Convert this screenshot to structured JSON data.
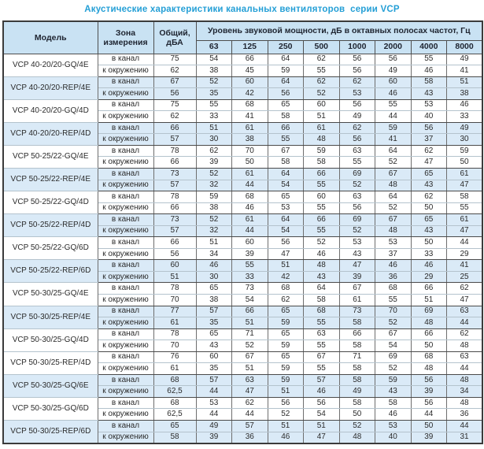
{
  "title": "Акустические характеристики канальных вентиляторов  серии VCP",
  "table": {
    "headers": {
      "model": "Модель",
      "zone": "Зона измерения",
      "total": "Общий, дБА",
      "spl": "Уровень звуковой мощности, дБ в октавных полосах частот, Гц"
    },
    "frequencies": [
      "63",
      "125",
      "250",
      "500",
      "1000",
      "2000",
      "4000",
      "8000"
    ],
    "groups": [
      {
        "model": "VCP 40-20/20-GQ/4E",
        "shade": false,
        "rows": [
          {
            "zone": "в канал",
            "total": "75",
            "levels": [
              54,
              66,
              64,
              62,
              56,
              56,
              55,
              49
            ]
          },
          {
            "zone": "к окружению",
            "total": "62",
            "levels": [
              38,
              45,
              59,
              55,
              56,
              49,
              46,
              41
            ]
          }
        ]
      },
      {
        "model": "VCP 40-20/20-REP/4E",
        "shade": true,
        "rows": [
          {
            "zone": "в канал",
            "total": "67",
            "levels": [
              52,
              60,
              64,
              62,
              62,
              60,
              58,
              51
            ]
          },
          {
            "zone": "к окружению",
            "total": "56",
            "levels": [
              35,
              42,
              56,
              52,
              53,
              46,
              43,
              38
            ]
          }
        ]
      },
      {
        "model": "VCP 40-20/20-GQ/4D",
        "shade": false,
        "rows": [
          {
            "zone": "в канал",
            "total": "75",
            "levels": [
              55,
              68,
              65,
              60,
              56,
              55,
              53,
              46
            ]
          },
          {
            "zone": "к окружению",
            "total": "62",
            "levels": [
              33,
              41,
              58,
              51,
              49,
              44,
              40,
              33
            ]
          }
        ]
      },
      {
        "model": "VCP 40-20/20-REP/4D",
        "shade": true,
        "rows": [
          {
            "zone": "в канал",
            "total": "66",
            "levels": [
              51,
              61,
              66,
              61,
              62,
              59,
              56,
              49
            ]
          },
          {
            "zone": "к окружению",
            "total": "57",
            "levels": [
              30,
              38,
              55,
              48,
              56,
              41,
              37,
              30
            ]
          }
        ]
      },
      {
        "model": "VCP 50-25/22-GQ/4E",
        "shade": false,
        "rows": [
          {
            "zone": "в канал",
            "total": "78",
            "levels": [
              62,
              70,
              67,
              59,
              63,
              64,
              62,
              59
            ]
          },
          {
            "zone": "к окружению",
            "total": "66",
            "levels": [
              39,
              50,
              58,
              58,
              55,
              52,
              47,
              50
            ]
          }
        ]
      },
      {
        "model": "VCP 50-25/22-REP/4E",
        "shade": true,
        "rows": [
          {
            "zone": "в канал",
            "total": "73",
            "levels": [
              52,
              61,
              64,
              66,
              69,
              67,
              65,
              61
            ]
          },
          {
            "zone": "к окружению",
            "total": "57",
            "levels": [
              32,
              44,
              54,
              55,
              52,
              48,
              43,
              47
            ]
          }
        ]
      },
      {
        "model": "VCP 50-25/22-GQ/4D",
        "shade": false,
        "rows": [
          {
            "zone": "в канал",
            "total": "78",
            "levels": [
              59,
              68,
              65,
              60,
              63,
              64,
              62,
              58
            ]
          },
          {
            "zone": "к окружению",
            "total": "66",
            "levels": [
              38,
              46,
              53,
              55,
              56,
              52,
              50,
              55
            ]
          }
        ]
      },
      {
        "model": "VCP 50-25/22-REP/4D",
        "shade": true,
        "rows": [
          {
            "zone": "в канал",
            "total": "73",
            "levels": [
              52,
              61,
              64,
              66,
              69,
              67,
              65,
              61
            ]
          },
          {
            "zone": "к окружению",
            "total": "57",
            "levels": [
              32,
              44,
              54,
              55,
              52,
              48,
              43,
              47
            ]
          }
        ]
      },
      {
        "model": "VCP 50-25/22-GQ/6D",
        "shade": false,
        "rows": [
          {
            "zone": "в канал",
            "total": "66",
            "levels": [
              51,
              60,
              56,
              52,
              53,
              53,
              50,
              44
            ]
          },
          {
            "zone": "к окружению",
            "total": "56",
            "levels": [
              34,
              39,
              47,
              46,
              43,
              37,
              33,
              29
            ]
          }
        ]
      },
      {
        "model": "VCP 50-25/22-REP/6D",
        "shade": true,
        "rows": [
          {
            "zone": "в канал",
            "total": "60",
            "levels": [
              46,
              55,
              51,
              48,
              47,
              46,
              46,
              41
            ]
          },
          {
            "zone": "к окружению",
            "total": "51",
            "levels": [
              30,
              33,
              42,
              43,
              39,
              36,
              29,
              25
            ]
          }
        ]
      },
      {
        "model": "VCP 50-30/25-GQ/4E",
        "shade": false,
        "rows": [
          {
            "zone": "в канал",
            "total": "78",
            "levels": [
              65,
              73,
              68,
              64,
              67,
              68,
              66,
              62
            ]
          },
          {
            "zone": "к окружению",
            "total": "70",
            "levels": [
              38,
              54,
              62,
              58,
              61,
              55,
              51,
              47
            ]
          }
        ]
      },
      {
        "model": "VCP 50-30/25-REP/4E",
        "shade": true,
        "rows": [
          {
            "zone": "в канал",
            "total": "77",
            "levels": [
              57,
              66,
              65,
              68,
              73,
              70,
              69,
              63
            ]
          },
          {
            "zone": "к окружению",
            "total": "61",
            "levels": [
              35,
              51,
              59,
              55,
              58,
              52,
              48,
              44
            ]
          }
        ]
      },
      {
        "model": "VCP 50-30/25-GQ/4D",
        "shade": false,
        "rows": [
          {
            "zone": "в канал",
            "total": "78",
            "levels": [
              65,
              71,
              65,
              63,
              66,
              67,
              66,
              62
            ]
          },
          {
            "zone": "к окружению",
            "total": "70",
            "levels": [
              43,
              52,
              59,
              55,
              58,
              54,
              50,
              48
            ]
          }
        ]
      },
      {
        "model": "VCP 50-30/25-REP/4D",
        "shade": false,
        "rows": [
          {
            "zone": "в канал",
            "total": "76",
            "levels": [
              60,
              67,
              65,
              67,
              71,
              69,
              68,
              63
            ]
          },
          {
            "zone": "к окружению",
            "total": "61",
            "levels": [
              35,
              51,
              59,
              55,
              58,
              52,
              48,
              44
            ]
          }
        ]
      },
      {
        "model": "VCP 50-30/25-GQ/6E",
        "shade": true,
        "rows": [
          {
            "zone": "в канал",
            "total": "68",
            "levels": [
              57,
              63,
              59,
              57,
              58,
              59,
              56,
              48
            ]
          },
          {
            "zone": "к окружению",
            "total": "62,5",
            "levels": [
              44,
              47,
              51,
              46,
              49,
              43,
              39,
              34
            ]
          }
        ]
      },
      {
        "model": "VCP 50-30/25-GQ/6D",
        "shade": false,
        "rows": [
          {
            "zone": "в канал",
            "total": "68",
            "levels": [
              53,
              62,
              56,
              56,
              58,
              58,
              56,
              48
            ]
          },
          {
            "zone": "к окружению",
            "total": "62,5",
            "levels": [
              44,
              44,
              52,
              54,
              50,
              46,
              44,
              36
            ]
          }
        ]
      },
      {
        "model": "VCP 50-30/25-REP/6D",
        "shade": true,
        "rows": [
          {
            "zone": "в канал",
            "total": "65",
            "levels": [
              49,
              57,
              51,
              51,
              52,
              53,
              50,
              44
            ]
          },
          {
            "zone": "к окружению",
            "total": "58",
            "levels": [
              39,
              36,
              46,
              47,
              48,
              40,
              39,
              31
            ]
          }
        ]
      }
    ]
  },
  "colors": {
    "title_blue": "#249fd6",
    "header_bg": "#c9e2f3",
    "stripe_bg": "#daeaf7",
    "border_dark": "#4a4a4a"
  }
}
